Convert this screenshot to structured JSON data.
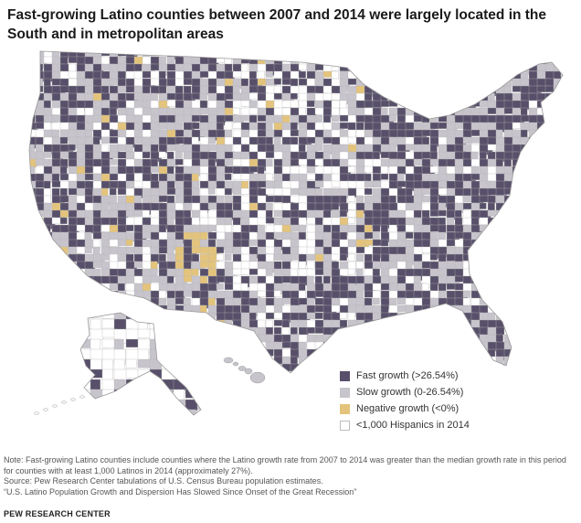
{
  "title": "Fast-growing Latino counties between 2007 and 2014 were largely located in the South and in metropolitan areas",
  "colors": {
    "fast": "#58506a",
    "slow": "#c7c4cc",
    "negative": "#e4c47c",
    "under": "#ffffff",
    "border": "#b5b5b5",
    "state_border": "#ffffff"
  },
  "legend": [
    {
      "key": "fast",
      "label": "Fast growth (>26.54%)"
    },
    {
      "key": "slow",
      "label": "Slow growth (0-26.54%)"
    },
    {
      "key": "negative",
      "label": "Negative growth (<0%)"
    },
    {
      "key": "under",
      "label": "<1,000 Hispanics in 2014"
    }
  ],
  "map": {
    "region": "United States counties",
    "legend_position": "bottom-right"
  },
  "footer": {
    "note": "Note: Fast-growing Latino counties include counties where the Latino growth rate from 2007 to 2014 was greater than the median growth rate in this period for counties with at least 1,000 Latinos in 2014 (approximately 27%).",
    "source": "Source: Pew Research Center tabulations of U.S. Census Bureau population estimates.",
    "report": "“U.S. Latino Population Growth and Dispersion Has Slowed Since Onset of the Great Recession”",
    "brand": "PEW RESEARCH CENTER"
  }
}
